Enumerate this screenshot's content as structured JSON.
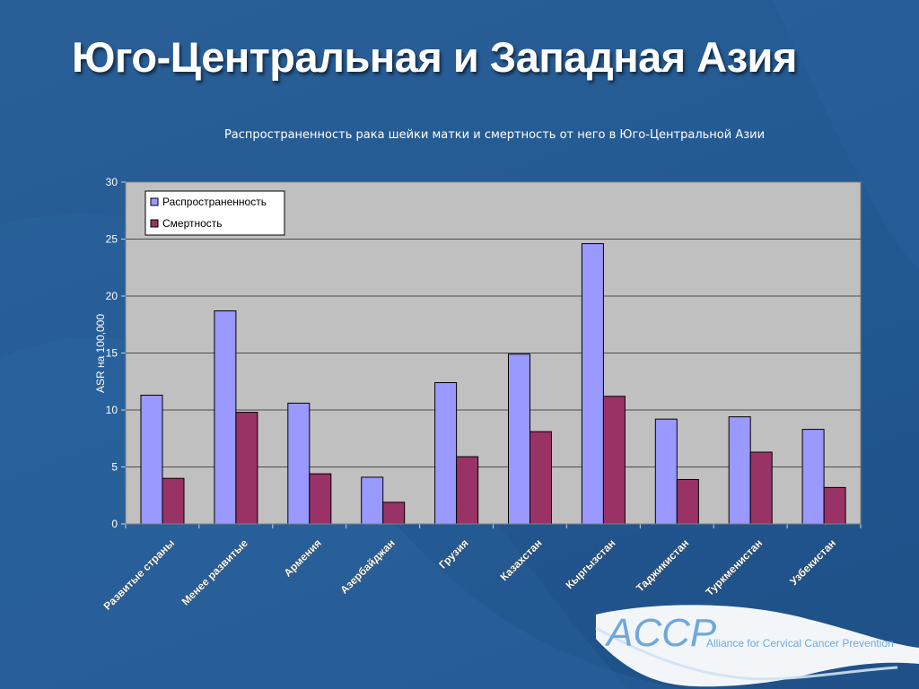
{
  "slide": {
    "title": "Юго-Центральная и Западная Азия"
  },
  "logo": {
    "mark": "ACCP",
    "text": "Alliance for Cervical Cancer Prevention"
  },
  "colors": {
    "background": "#285c94",
    "plot_area": "#c0c0c0",
    "incidence": "#9999ff",
    "mortality": "#993366"
  },
  "chart_data": {
    "type": "bar",
    "title": "Распространенность рака шейки матки и смертность от него в Юго-Центральной Азии",
    "xlabel": "",
    "ylabel": "ASR на 100,000",
    "ylim": [
      0,
      30
    ],
    "yticks": [
      0,
      5,
      10,
      15,
      20,
      25,
      30
    ],
    "grid": true,
    "legend_position": "top-left",
    "categories": [
      "Развитые страны",
      "Менее развитые",
      "Армения",
      "Азербайджан",
      "Грузия",
      "Казахстан",
      "Кыргызстан",
      "Таджикистан",
      "Туркменистан",
      "Узбекистан"
    ],
    "series": [
      {
        "name": "Распространенность",
        "values": [
          11.3,
          18.7,
          10.6,
          4.1,
          12.4,
          14.9,
          24.6,
          9.2,
          9.4,
          8.3
        ]
      },
      {
        "name": "Смертность",
        "values": [
          4.0,
          9.8,
          4.4,
          1.9,
          5.9,
          8.1,
          11.2,
          3.9,
          6.3,
          3.2
        ]
      }
    ]
  }
}
